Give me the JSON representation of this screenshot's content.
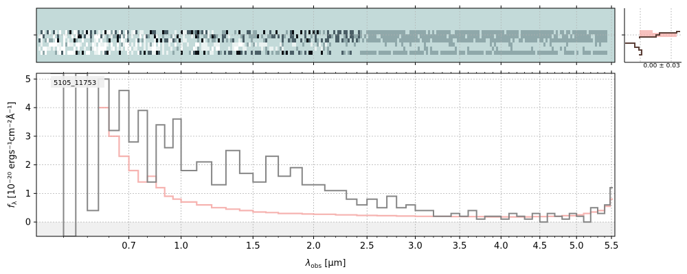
{
  "chart_data": [
    {
      "type": "heatmap",
      "panel": "2D spectrum",
      "description_colormap": "bone",
      "background": "#c3dad9",
      "spatial_rows": 6,
      "x_axis": "shared with 1D spectrum",
      "grid": true
    },
    {
      "type": "line",
      "title": "",
      "annotation": "5105_11753",
      "xlabel_symbol": "λ",
      "xlabel_subscript": "obs",
      "xlabel_unit": " [μm]",
      "ylabel_main": "f",
      "ylabel_subscript": "λ",
      "ylabel_unit": "[10⁻²⁰ ergs⁻¹cm⁻²Å⁻¹]",
      "x_scale": "sqrt",
      "xlim": [
        0.3,
        5.55
      ],
      "ylim": [
        -0.5,
        5.2
      ],
      "x_ticks": [
        {
          "value": 0.7,
          "label": "0.7"
        },
        {
          "value": 1.0,
          "label": "1.0"
        },
        {
          "value": 1.5,
          "label": "1.5"
        },
        {
          "value": 2.0,
          "label": "2.0"
        },
        {
          "value": 2.5,
          "label": "2.5"
        },
        {
          "value": 3.0,
          "label": "3.0"
        },
        {
          "value": 3.5,
          "label": "3.5"
        },
        {
          "value": 4.0,
          "label": "4.0"
        },
        {
          "value": 4.5,
          "label": "4.5"
        },
        {
          "value": 5.0,
          "label": "5.0"
        },
        {
          "value": 5.5,
          "label": "5.5"
        }
      ],
      "y_ticks": [
        {
          "value": 0,
          "label": "0"
        },
        {
          "value": 1,
          "label": "1"
        },
        {
          "value": 2,
          "label": "2"
        },
        {
          "value": 3,
          "label": "3"
        },
        {
          "value": 4,
          "label": "4"
        },
        {
          "value": 5,
          "label": "5"
        }
      ],
      "grid": true,
      "series": [
        {
          "color": "#808080",
          "style": "steps",
          "x": [
            0.35,
            0.4,
            0.45,
            0.5,
            0.55,
            0.6,
            0.65,
            0.7,
            0.75,
            0.8,
            0.85,
            0.9,
            0.95,
            1.0,
            1.1,
            1.2,
            1.3,
            1.4,
            1.5,
            1.6,
            1.7,
            1.8,
            1.9,
            2.0,
            2.1,
            2.2,
            2.3,
            2.4,
            2.5,
            2.6,
            2.7,
            2.8,
            2.9,
            3.0,
            3.1,
            3.2,
            3.3,
            3.4,
            3.5,
            3.6,
            3.7,
            3.8,
            3.9,
            4.0,
            4.1,
            4.2,
            4.3,
            4.4,
            4.5,
            4.6,
            4.7,
            4.8,
            4.9,
            5.0,
            5.1,
            5.2,
            5.3,
            5.4,
            5.48
          ],
          "y": [
            5.2,
            -0.5,
            5.2,
            0.4,
            5.0,
            3.2,
            4.6,
            2.8,
            3.9,
            1.4,
            3.4,
            2.6,
            3.6,
            1.8,
            2.1,
            1.3,
            2.5,
            1.7,
            1.4,
            2.3,
            1.6,
            1.9,
            1.3,
            1.3,
            1.1,
            1.1,
            0.8,
            0.6,
            0.8,
            0.5,
            0.9,
            0.5,
            0.6,
            0.4,
            0.4,
            0.2,
            0.2,
            0.3,
            0.2,
            0.4,
            0.1,
            0.2,
            0.2,
            0.1,
            0.3,
            0.2,
            0.1,
            0.3,
            0.0,
            0.3,
            0.2,
            0.1,
            0.3,
            0.2,
            0.0,
            0.5,
            0.3,
            0.6,
            1.2
          ]
        },
        {
          "color": "#f4a6a2",
          "style": "steps",
          "x": [
            0.55,
            0.6,
            0.65,
            0.7,
            0.75,
            0.8,
            0.85,
            0.9,
            0.95,
            1.0,
            1.1,
            1.2,
            1.3,
            1.4,
            1.5,
            1.6,
            1.7,
            1.8,
            1.9,
            2.0,
            2.2,
            2.4,
            2.6,
            2.8,
            3.0,
            3.2,
            3.4,
            3.6,
            3.8,
            4.0,
            4.2,
            4.4,
            4.6,
            4.8,
            5.0,
            5.1,
            5.2,
            5.3,
            5.4,
            5.48
          ],
          "y": [
            4.0,
            3.0,
            2.3,
            1.8,
            1.4,
            1.6,
            1.2,
            0.9,
            0.8,
            0.7,
            0.6,
            0.5,
            0.45,
            0.4,
            0.35,
            0.33,
            0.3,
            0.3,
            0.28,
            0.27,
            0.25,
            0.23,
            0.22,
            0.21,
            0.2,
            0.2,
            0.19,
            0.19,
            0.18,
            0.18,
            0.18,
            0.19,
            0.2,
            0.22,
            0.25,
            0.3,
            0.35,
            0.4,
            0.55,
            0.8
          ]
        }
      ]
    },
    {
      "type": "line",
      "panel": "spatial profile",
      "annotation": "0.00 ± 0.03",
      "series": [
        {
          "color": "#f4a6a2",
          "style": "filled-profile"
        },
        {
          "color": "#5a3e36",
          "style": "steps"
        }
      ]
    }
  ]
}
